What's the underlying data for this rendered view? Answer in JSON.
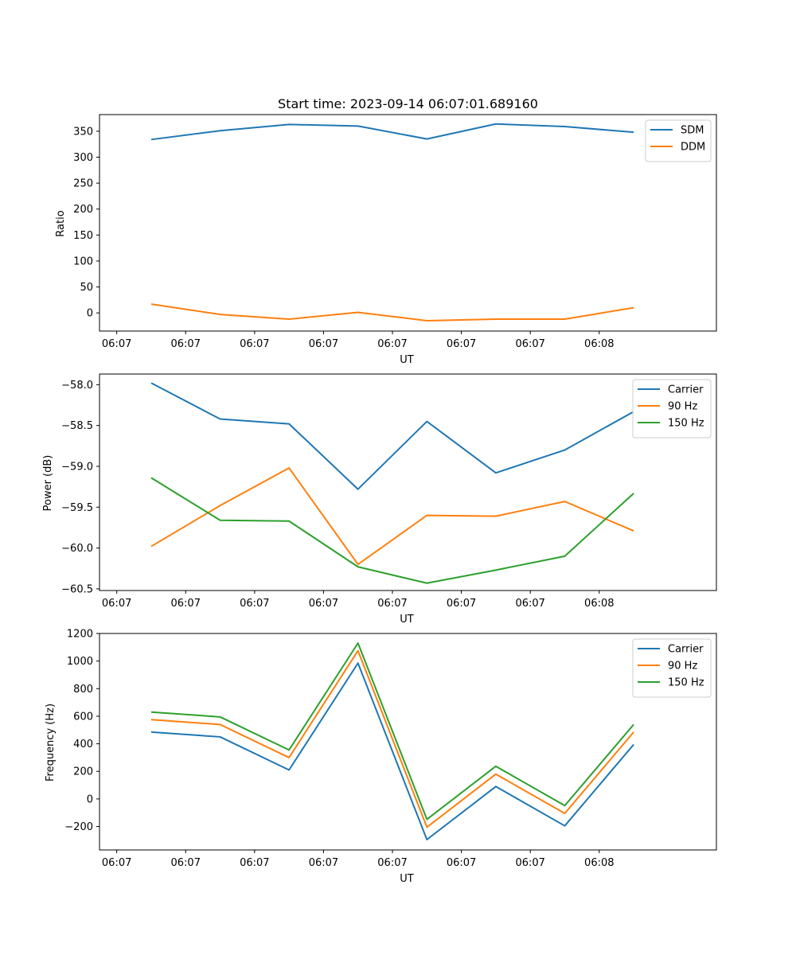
{
  "chart_data": [
    {
      "type": "line",
      "title": "Start time: 2023-09-14 06:07:01.689160",
      "xlabel": "UT",
      "ylabel": "Ratio",
      "x_tick_labels": [
        "06:07",
        "06:07",
        "06:07",
        "06:07",
        "06:07",
        "06:07",
        "06:07",
        "06:08"
      ],
      "x": [
        1,
        2,
        3,
        4,
        5,
        6,
        7,
        8
      ],
      "xlim": [
        0.25,
        9.2
      ],
      "ylim": [
        -35,
        382
      ],
      "y_ticks": [
        0,
        50,
        100,
        150,
        200,
        250,
        300,
        350
      ],
      "y_tick_labels": [
        "0",
        "50",
        "100",
        "150",
        "200",
        "250",
        "300",
        "350"
      ],
      "legend": "top-right",
      "series": [
        {
          "name": "SDM",
          "color": "#1f77b4",
          "values": [
            334,
            351,
            363,
            360,
            335,
            364,
            359,
            348
          ]
        },
        {
          "name": "DDM",
          "color": "#ff7f0e",
          "values": [
            17,
            -3,
            -12,
            1,
            -15,
            -12,
            -12,
            10
          ]
        }
      ]
    },
    {
      "type": "line",
      "title": "",
      "xlabel": "UT",
      "ylabel": "Power (dB)",
      "x_tick_labels": [
        "06:07",
        "06:07",
        "06:07",
        "06:07",
        "06:07",
        "06:07",
        "06:07",
        "06:08"
      ],
      "x": [
        1,
        2,
        3,
        4,
        5,
        6,
        7,
        8
      ],
      "xlim": [
        0.25,
        9.2
      ],
      "ylim": [
        -60.52,
        -57.87
      ],
      "y_ticks": [
        -60.5,
        -60.0,
        -59.5,
        -59.0,
        -58.5,
        -58.0
      ],
      "y_tick_labels": [
        "−60.5",
        "−60.0",
        "−59.5",
        "−59.0",
        "−58.5",
        "−58.0"
      ],
      "legend": "top-right",
      "series": [
        {
          "name": "Carrier",
          "color": "#1f77b4",
          "values": [
            -57.98,
            -58.42,
            -58.48,
            -59.28,
            -58.45,
            -59.08,
            -58.8,
            -58.33
          ]
        },
        {
          "name": "90 Hz",
          "color": "#ff7f0e",
          "values": [
            -59.98,
            -59.48,
            -59.02,
            -60.2,
            -59.6,
            -59.61,
            -59.43,
            -59.79
          ]
        },
        {
          "name": "150 Hz",
          "color": "#2ca02c",
          "values": [
            -59.14,
            -59.66,
            -59.67,
            -60.23,
            -60.43,
            -60.27,
            -60.1,
            -59.33
          ]
        }
      ]
    },
    {
      "type": "line",
      "title": "",
      "xlabel": "UT",
      "ylabel": "Frequency (Hz)",
      "x_tick_labels": [
        "06:07",
        "06:07",
        "06:07",
        "06:07",
        "06:07",
        "06:07",
        "06:07",
        "06:08"
      ],
      "x": [
        1,
        2,
        3,
        4,
        5,
        6,
        7,
        8
      ],
      "xlim": [
        0.25,
        9.2
      ],
      "ylim": [
        -370,
        1200
      ],
      "y_ticks": [
        -200,
        0,
        200,
        400,
        600,
        800,
        1000,
        1200
      ],
      "y_tick_labels": [
        "−200",
        "0",
        "200",
        "400",
        "600",
        "800",
        "1000",
        "1200"
      ],
      "legend": "top-right",
      "series": [
        {
          "name": "Carrier",
          "color": "#1f77b4",
          "values": [
            485,
            450,
            210,
            985,
            -295,
            90,
            -195,
            395
          ]
        },
        {
          "name": "90 Hz",
          "color": "#ff7f0e",
          "values": [
            575,
            540,
            300,
            1075,
            -205,
            180,
            -105,
            485
          ]
        },
        {
          "name": "150 Hz",
          "color": "#2ca02c",
          "values": [
            630,
            595,
            355,
            1130,
            -148,
            237,
            -48,
            540
          ]
        }
      ]
    }
  ]
}
